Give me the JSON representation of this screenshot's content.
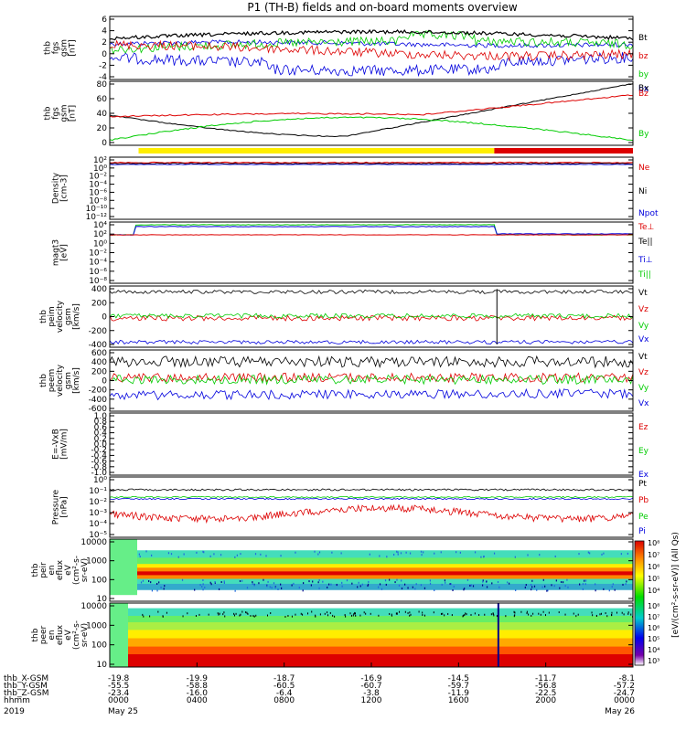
{
  "title": "P1  (TH-B) fields and on-board moments overview",
  "chart_data": [
    {
      "type": "line",
      "id": "fgs",
      "ylabel": [
        "thb",
        "fgs",
        "gsm",
        "[nT]"
      ],
      "yticks": [
        "6",
        "4",
        "2",
        "0",
        "-2",
        "-4"
      ],
      "ylim": [
        -5,
        6.5
      ],
      "legend": [
        {
          "name": "Bt",
          "color": "#000000"
        },
        {
          "name": "bz",
          "color": "#dd0000"
        },
        {
          "name": "by",
          "color": "#00cc00"
        },
        {
          "name": "bx",
          "color": "#0000dd"
        }
      ]
    },
    {
      "type": "line",
      "id": "fgs_gse",
      "ylabel": [
        "thb",
        "fgs",
        "gsm",
        "[nT]"
      ],
      "yticks": [
        "80",
        "60",
        "40",
        "20",
        "0"
      ],
      "ylim": [
        -5,
        80
      ],
      "legend": [
        {
          "name": "Bx",
          "color": "#000000"
        },
        {
          "name": "Bz",
          "color": "#dd0000"
        },
        {
          "name": "By",
          "color": "#00cc00"
        }
      ]
    },
    {
      "type": "line",
      "id": "density",
      "ylabel": [
        "Density",
        "[cm-3]"
      ],
      "yticks": [
        "10²",
        "10⁰",
        "10⁻²",
        "10⁻⁴",
        "10⁻⁶",
        "10⁻⁸",
        "10⁻¹⁰",
        "10⁻¹²"
      ],
      "legend": [
        {
          "name": "Ne",
          "color": "#dd0000"
        },
        {
          "name": "Ni",
          "color": "#000000"
        },
        {
          "name": "Npot",
          "color": "#0000dd"
        }
      ]
    },
    {
      "type": "line",
      "id": "temp",
      "ylabel": [
        "magt3",
        "[eV]"
      ],
      "yticks": [
        "10⁴",
        "10²",
        "10⁰",
        "10⁻²",
        "10⁻⁴",
        "10⁻⁶",
        "10⁻⁸"
      ],
      "legend": [
        {
          "name": "Te⊥",
          "color": "#dd0000"
        },
        {
          "name": "Te||",
          "color": "#000000"
        },
        {
          "name": "Ti⊥",
          "color": "#0000dd"
        },
        {
          "name": "Ti||",
          "color": "#00cc00"
        }
      ]
    },
    {
      "type": "line",
      "id": "peim",
      "ylabel": [
        "thb",
        "peim",
        "velocity",
        "gsm",
        "[km/s]"
      ],
      "yticks": [
        "400",
        "200",
        "0",
        "-200",
        "-400"
      ],
      "ylim": [
        -420,
        420
      ],
      "legend": [
        {
          "name": "Vt",
          "color": "#000000"
        },
        {
          "name": "Vz",
          "color": "#dd0000"
        },
        {
          "name": "Vy",
          "color": "#00cc00"
        },
        {
          "name": "Vx",
          "color": "#0000dd"
        }
      ]
    },
    {
      "type": "line",
      "id": "peem",
      "ylabel": [
        "thb",
        "peem",
        "velocity",
        "gsm",
        "[km/s]"
      ],
      "yticks": [
        "600",
        "400",
        "200",
        "0",
        "-200",
        "-400",
        "-600"
      ],
      "ylim": [
        -620,
        620
      ],
      "legend": [
        {
          "name": "Vt",
          "color": "#000000"
        },
        {
          "name": "Vz",
          "color": "#dd0000"
        },
        {
          "name": "Vy",
          "color": "#00cc00"
        },
        {
          "name": "Vx",
          "color": "#0000dd"
        }
      ]
    },
    {
      "type": "line",
      "id": "efield",
      "ylabel": [
        "E=-VxB",
        "[mV/m]"
      ],
      "yticks": [
        "1.0",
        "0.8",
        "0.6",
        "0.4",
        "0.2",
        "0.0",
        "-0.2",
        "-0.4",
        "-0.6",
        "-0.8",
        "-1.0"
      ],
      "ylim": [
        -1.0,
        1.0
      ],
      "legend": [
        {
          "name": "Ez",
          "color": "#dd0000"
        },
        {
          "name": "Ey",
          "color": "#00cc00"
        },
        {
          "name": "Ex",
          "color": "#0000dd"
        }
      ]
    },
    {
      "type": "line",
      "id": "pressure",
      "ylabel": [
        "Pressure",
        "[nPa]"
      ],
      "yticks": [
        "10⁰",
        "10⁻¹",
        "10⁻²",
        "10⁻³",
        "10⁻⁴",
        "10⁻⁵"
      ],
      "legend": [
        {
          "name": "Pt",
          "color": "#000000"
        },
        {
          "name": "Pb",
          "color": "#dd0000"
        },
        {
          "name": "Pe",
          "color": "#00cc00"
        },
        {
          "name": "Pi",
          "color": "#0000dd"
        }
      ]
    },
    {
      "type": "heatmap",
      "id": "peir",
      "ylabel": [
        "thb",
        "peir",
        "en",
        "eflux",
        "eV",
        "(cm²-s-",
        "sr-eV)"
      ],
      "yticks": [
        "10000",
        "1000",
        "100",
        "10"
      ]
    },
    {
      "type": "heatmap",
      "id": "peer",
      "ylabel": [
        "thb",
        "peer",
        "en",
        "eflux",
        "eV",
        "(cm²-s-",
        "sr-eV)"
      ],
      "yticks": [
        "10000",
        "1000",
        "100",
        "10"
      ]
    }
  ],
  "colorbar": {
    "label": "[eV/(cm²-s-sr-eV)] (All Qs)",
    "ticks_top": [
      "10⁸",
      "10⁷",
      "10⁶",
      "10⁵",
      "10⁴"
    ],
    "ticks_bottom": [
      "10⁸",
      "10⁷",
      "10⁶",
      "10⁵",
      "10⁴",
      "10³"
    ]
  },
  "xaxis": {
    "row_labels": [
      "thb_X-GSM",
      "thb_Y-GSM",
      "thb_Z-GSM",
      "hhmm",
      "2019"
    ],
    "columns": [
      [
        "-19.8",
        "-55.5",
        "-23.4",
        "0000",
        "May 25"
      ],
      [
        "-19.9",
        "-58.8",
        "-16.0",
        "0400",
        ""
      ],
      [
        "-18.7",
        "-60.5",
        "-6.4",
        "0800",
        ""
      ],
      [
        "-16.9",
        "-60.7",
        "-3.8",
        "1200",
        ""
      ],
      [
        "-14.5",
        "-59.7",
        "-11.9",
        "1600",
        ""
      ],
      [
        "-11.7",
        "-56.8",
        "-22.5",
        "2000",
        ""
      ],
      [
        "-8.1",
        "-57.2",
        "-24.7",
        "0000",
        "May 26"
      ]
    ]
  },
  "colors": {
    "black": "#000000",
    "red": "#dd0000",
    "green": "#00cc00",
    "blue": "#0000dd",
    "yellow": "#ffee00"
  }
}
